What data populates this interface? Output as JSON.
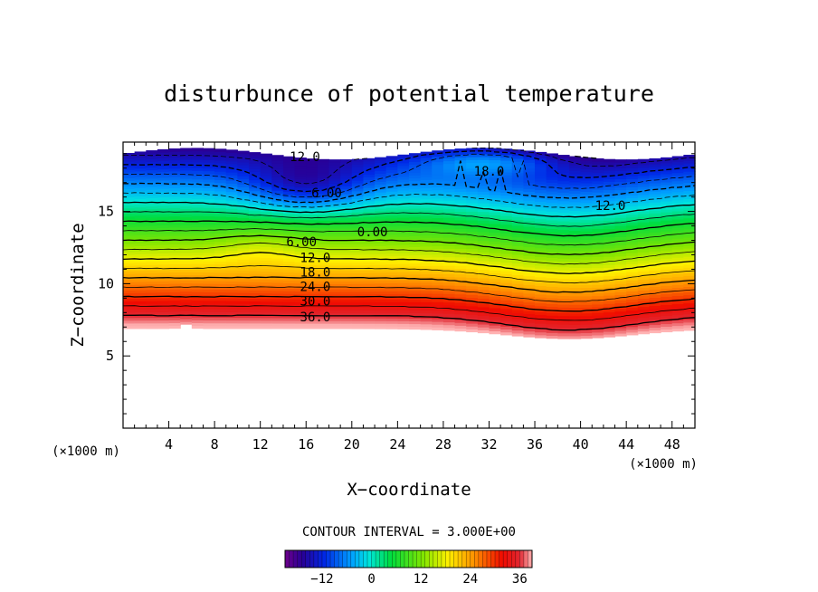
{
  "chart_data": {
    "type": "heatmap",
    "title": "disturbunce of potential temperature",
    "xlabel": "X−coordinate",
    "ylabel": "Z−coordinate",
    "x_unit_left": "(×1000 m)",
    "x_unit_right": "(×1000 m)",
    "xlim": [
      0,
      50
    ],
    "ylim": [
      0,
      19.8
    ],
    "x_ticks": [
      4,
      8,
      12,
      16,
      20,
      24,
      28,
      32,
      36,
      40,
      44,
      48
    ],
    "y_ticks": [
      5,
      10,
      15
    ],
    "contour_interval_text": "CONTOUR INTERVAL = 3.000E+00",
    "contour_interval": 3.0,
    "colorbar": {
      "range": [
        -21,
        39
      ],
      "tick_values": [
        -12,
        0,
        12,
        24,
        36
      ],
      "tick_labels": [
        "−12",
        "0",
        "12",
        "24",
        "36"
      ]
    },
    "contour_labels": [
      {
        "text": "12.0",
        "x": 15.9,
        "z": 18.8
      },
      {
        "text": "18.0",
        "x": 32.0,
        "z": 17.8
      },
      {
        "text": "6.00",
        "x": 17.8,
        "z": 16.3
      },
      {
        "text": "12.0",
        "x": 42.6,
        "z": 15.4
      },
      {
        "text": "0.00",
        "x": 21.8,
        "z": 13.6
      },
      {
        "text": "6.00",
        "x": 15.6,
        "z": 12.9
      },
      {
        "text": "12.0",
        "x": 16.8,
        "z": 11.8
      },
      {
        "text": "18.0",
        "x": 16.8,
        "z": 10.8
      },
      {
        "text": "24.0",
        "x": 16.8,
        "z": 9.8
      },
      {
        "text": "30.0",
        "x": 16.8,
        "z": 8.8
      },
      {
        "text": "36.0",
        "x": 16.8,
        "z": 7.7
      }
    ]
  }
}
